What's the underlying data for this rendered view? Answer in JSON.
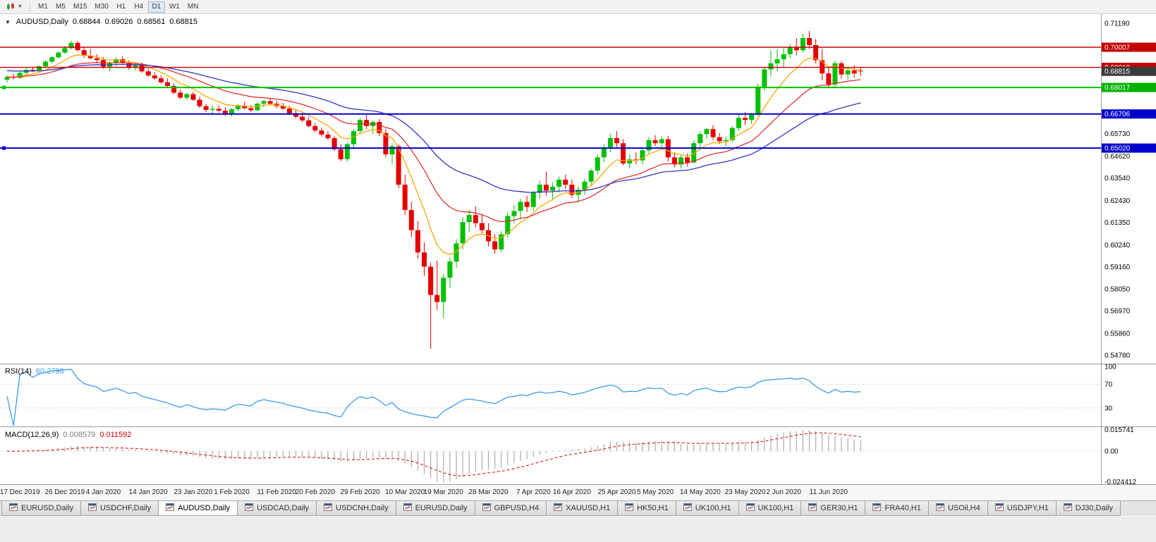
{
  "toolbar": {
    "timeframes": [
      "M1",
      "M5",
      "M15",
      "M30",
      "H1",
      "H4",
      "D1",
      "W1",
      "MN"
    ],
    "active_timeframe": "D1"
  },
  "chart": {
    "title": {
      "symbol": "AUDUSD,Daily",
      "open": "0.68844",
      "high": "0.69026",
      "low": "0.68561",
      "close": "0.68815"
    }
  },
  "rsi_panel": {
    "label": "RSI(14)",
    "value": "60.2798",
    "line_color": "#3d9be9",
    "axis_labels": [
      "100",
      "70",
      "30"
    ],
    "levels": [
      70,
      30
    ]
  },
  "macd_panel": {
    "label": "MACD(12,26,9)",
    "main_value": "0.008579",
    "signal_value": "0.011592",
    "histogram_color": "#ababab",
    "signal_color": "#d40000",
    "axis_max_label": "0.015741",
    "axis_zero_label": "0.00",
    "axis_min_label": "-0.024412"
  },
  "price_axis": {
    "ticks": [
      "0.71190",
      "0.65730",
      "0.64620",
      "0.63540",
      "0.62430",
      "0.61350",
      "0.60240",
      "0.59160",
      "0.58050",
      "0.56970",
      "0.55860",
      "0.54780"
    ],
    "badges": [
      {
        "text": "0.70007",
        "price": 0.70007,
        "color": "#c40000"
      },
      {
        "text": "0.69010",
        "price": 0.6901,
        "color": "#c40000"
      },
      {
        "text": "0.68815",
        "price": 0.68815,
        "color": "#3a3a3a"
      },
      {
        "text": "0.68017",
        "price": 0.68017,
        "color": "#00b300"
      },
      {
        "text": "0.66706",
        "price": 0.66706,
        "color": "#0000cc"
      },
      {
        "text": "0.65020",
        "price": 0.6502,
        "color": "#0000cc"
      }
    ]
  },
  "chart_data": {
    "type": "candlestick",
    "symbol": "AUDUSD",
    "period": "Daily",
    "ohlc_current": {
      "open": 0.68844,
      "high": 0.69026,
      "low": 0.68561,
      "close": 0.68815
    },
    "ylim": [
      0.5478,
      0.7119
    ],
    "y_ticks": [
      0.7119,
      0.6573,
      0.6462,
      0.6354,
      0.6243,
      0.6135,
      0.6024,
      0.5916,
      0.5805,
      0.5697,
      0.5586,
      0.5478
    ],
    "x_labels": [
      "17 Dec 2019",
      "26 Dec 2019",
      "4 Jan 2020",
      "14 Jan 2020",
      "23 Jan 2020",
      "1 Feb 2020",
      "11 Feb 2020",
      "20 Feb 2020",
      "29 Feb 2020",
      "10 Mar 2020",
      "19 Mar 2020",
      "28 Mar 2020",
      "7 Apr 2020",
      "16 Apr 2020",
      "25 Apr 2020",
      "5 May 2020",
      "14 May 2020",
      "23 May 2020",
      "2 Jun 2020",
      "11 Jun 2020"
    ],
    "up_color": "#00c000",
    "down_color": "#e60000",
    "hlines": [
      {
        "price": 0.70007,
        "color": "#c40000",
        "width": 1.4,
        "handle": false
      },
      {
        "price": 0.6901,
        "color": "#c40000",
        "width": 1.4,
        "handle": false
      },
      {
        "price": 0.68017,
        "color": "#00c000",
        "width": 2,
        "handle": true
      },
      {
        "price": 0.66706,
        "color": "#0000cc",
        "width": 2,
        "handle": false
      },
      {
        "price": 0.6502,
        "color": "#0000cc",
        "width": 2,
        "handle": true
      }
    ],
    "moving_averages": [
      {
        "name": "ma-fast-orange",
        "color": "#f7a800",
        "period": 8
      },
      {
        "name": "ma-mid-red",
        "color": "#e03232",
        "period": 20
      },
      {
        "name": "ma-slow-blue",
        "color": "#3434c8",
        "period": 40
      }
    ],
    "rsi": {
      "period": 14,
      "current": 60.2798
    },
    "macd": {
      "fast": 12,
      "slow": 26,
      "signal": 9,
      "current_main": 0.008579,
      "current_signal": 0.011592
    },
    "candles": [
      [
        0.684,
        0.6861,
        0.6826,
        0.6853
      ],
      [
        0.6853,
        0.6869,
        0.6841,
        0.6849
      ],
      [
        0.6849,
        0.6881,
        0.6844,
        0.6874
      ],
      [
        0.6874,
        0.6896,
        0.6866,
        0.6889
      ],
      [
        0.6889,
        0.6904,
        0.6876,
        0.6884
      ],
      [
        0.6884,
        0.6911,
        0.6879,
        0.6906
      ],
      [
        0.6906,
        0.6936,
        0.6899,
        0.6929
      ],
      [
        0.6929,
        0.6956,
        0.6921,
        0.6951
      ],
      [
        0.6951,
        0.6979,
        0.6944,
        0.6974
      ],
      [
        0.6974,
        0.7006,
        0.6968,
        0.6996
      ],
      [
        0.6996,
        0.7033,
        0.6989,
        0.7022
      ],
      [
        0.7022,
        0.7031,
        0.6979,
        0.6986
      ],
      [
        0.6986,
        0.7001,
        0.6949,
        0.6959
      ],
      [
        0.6959,
        0.6991,
        0.6941,
        0.6946
      ],
      [
        0.6946,
        0.6966,
        0.6924,
        0.6937
      ],
      [
        0.6937,
        0.6951,
        0.6894,
        0.6904
      ],
      [
        0.6904,
        0.6931,
        0.6881,
        0.6921
      ],
      [
        0.6921,
        0.6951,
        0.6906,
        0.6941
      ],
      [
        0.6941,
        0.6956,
        0.6914,
        0.6924
      ],
      [
        0.6924,
        0.6936,
        0.6889,
        0.6899
      ],
      [
        0.6899,
        0.6921,
        0.6884,
        0.6911
      ],
      [
        0.6911,
        0.6926,
        0.6874,
        0.6881
      ],
      [
        0.6881,
        0.6896,
        0.6854,
        0.6861
      ],
      [
        0.6861,
        0.6876,
        0.6839,
        0.6847
      ],
      [
        0.6847,
        0.6861,
        0.6819,
        0.6827
      ],
      [
        0.6827,
        0.6846,
        0.6799,
        0.6809
      ],
      [
        0.6809,
        0.6821,
        0.6769,
        0.6776
      ],
      [
        0.6776,
        0.6791,
        0.6744,
        0.6751
      ],
      [
        0.6751,
        0.6776,
        0.6739,
        0.6769
      ],
      [
        0.6769,
        0.6781,
        0.6734,
        0.6741
      ],
      [
        0.6741,
        0.6756,
        0.6699,
        0.6709
      ],
      [
        0.6709,
        0.6721,
        0.6679,
        0.6691
      ],
      [
        0.6691,
        0.6713,
        0.6669,
        0.6696
      ],
      [
        0.6696,
        0.6711,
        0.6677,
        0.6687
      ],
      [
        0.6687,
        0.6704,
        0.6661,
        0.6671
      ],
      [
        0.6671,
        0.6701,
        0.6659,
        0.6694
      ],
      [
        0.6694,
        0.6721,
        0.6684,
        0.6711
      ],
      [
        0.6711,
        0.6731,
        0.6694,
        0.6699
      ],
      [
        0.6699,
        0.6716,
        0.6679,
        0.6689
      ],
      [
        0.6689,
        0.6729,
        0.6684,
        0.6721
      ],
      [
        0.6721,
        0.6741,
        0.6704,
        0.6734
      ],
      [
        0.6734,
        0.6751,
        0.6714,
        0.6721
      ],
      [
        0.6721,
        0.6736,
        0.6699,
        0.6709
      ],
      [
        0.6709,
        0.6726,
        0.6689,
        0.6697
      ],
      [
        0.6697,
        0.6711,
        0.6666,
        0.6674
      ],
      [
        0.6674,
        0.6691,
        0.6649,
        0.6657
      ],
      [
        0.6657,
        0.6676,
        0.6629,
        0.6639
      ],
      [
        0.6639,
        0.6656,
        0.6604,
        0.6611
      ],
      [
        0.6611,
        0.6626,
        0.6579,
        0.6589
      ],
      [
        0.6589,
        0.6604,
        0.6559,
        0.6569
      ],
      [
        0.6569,
        0.6586,
        0.6541,
        0.6551
      ],
      [
        0.6551,
        0.6561,
        0.6486,
        0.6496
      ],
      [
        0.6496,
        0.6521,
        0.6437,
        0.6447
      ],
      [
        0.6447,
        0.6531,
        0.6434,
        0.6521
      ],
      [
        0.6521,
        0.6596,
        0.6501,
        0.6586
      ],
      [
        0.6586,
        0.6651,
        0.6571,
        0.6641
      ],
      [
        0.6641,
        0.6666,
        0.6596,
        0.6611
      ],
      [
        0.6611,
        0.6641,
        0.6571,
        0.6631
      ],
      [
        0.6631,
        0.6646,
        0.6561,
        0.6576
      ],
      [
        0.6576,
        0.6596,
        0.6456,
        0.6471
      ],
      [
        0.6471,
        0.6526,
        0.6421,
        0.6511
      ],
      [
        0.6511,
        0.6521,
        0.6304,
        0.6321
      ],
      [
        0.6321,
        0.6371,
        0.6171,
        0.6196
      ],
      [
        0.6196,
        0.6236,
        0.6061,
        0.6096
      ],
      [
        0.6096,
        0.6141,
        0.5956,
        0.5986
      ],
      [
        0.5986,
        0.6036,
        0.5871,
        0.5916
      ],
      [
        0.5916,
        0.5936,
        0.551,
        0.5776
      ],
      [
        0.5776,
        0.5946,
        0.5702,
        0.5741
      ],
      [
        0.5741,
        0.5881,
        0.5661,
        0.5861
      ],
      [
        0.5861,
        0.5961,
        0.5811,
        0.5941
      ],
      [
        0.5941,
        0.6051,
        0.5911,
        0.6031
      ],
      [
        0.6031,
        0.6161,
        0.6001,
        0.6136
      ],
      [
        0.6136,
        0.6196,
        0.6086,
        0.6171
      ],
      [
        0.6171,
        0.6216,
        0.6111,
        0.6131
      ],
      [
        0.6131,
        0.6176,
        0.6081,
        0.6096
      ],
      [
        0.6096,
        0.6131,
        0.6016,
        0.6041
      ],
      [
        0.6041,
        0.6076,
        0.5981,
        0.6001
      ],
      [
        0.6001,
        0.6091,
        0.5986,
        0.6076
      ],
      [
        0.6076,
        0.6186,
        0.6061,
        0.6166
      ],
      [
        0.6166,
        0.6221,
        0.6131,
        0.6191
      ],
      [
        0.6191,
        0.6251,
        0.6151,
        0.6236
      ],
      [
        0.6236,
        0.6266,
        0.6186,
        0.6211
      ],
      [
        0.6211,
        0.6291,
        0.6191,
        0.6281
      ],
      [
        0.6281,
        0.6341,
        0.6251,
        0.6321
      ],
      [
        0.6321,
        0.6386,
        0.6266,
        0.6291
      ],
      [
        0.6291,
        0.6331,
        0.6251,
        0.6311
      ],
      [
        0.6311,
        0.6361,
        0.6281,
        0.6346
      ],
      [
        0.6346,
        0.6371,
        0.6301,
        0.6321
      ],
      [
        0.6321,
        0.6346,
        0.6256,
        0.6271
      ],
      [
        0.6271,
        0.6311,
        0.6231,
        0.6296
      ],
      [
        0.6296,
        0.6351,
        0.6271,
        0.6336
      ],
      [
        0.6336,
        0.6401,
        0.6316,
        0.6391
      ],
      [
        0.6391,
        0.6471,
        0.6371,
        0.6456
      ],
      [
        0.6456,
        0.6521,
        0.6431,
        0.6506
      ],
      [
        0.6506,
        0.6571,
        0.6481,
        0.6551
      ],
      [
        0.6551,
        0.6586,
        0.6506,
        0.6526
      ],
      [
        0.6526,
        0.6546,
        0.6416,
        0.6426
      ],
      [
        0.6426,
        0.6471,
        0.6401,
        0.6446
      ],
      [
        0.6446,
        0.6481,
        0.6421,
        0.6441
      ],
      [
        0.6441,
        0.6506,
        0.6421,
        0.6491
      ],
      [
        0.6491,
        0.6556,
        0.6476,
        0.6541
      ],
      [
        0.6541,
        0.6566,
        0.6511,
        0.6526
      ],
      [
        0.6526,
        0.6561,
        0.6496,
        0.6546
      ],
      [
        0.6546,
        0.6561,
        0.6436,
        0.6456
      ],
      [
        0.6456,
        0.6481,
        0.6406,
        0.6421
      ],
      [
        0.6421,
        0.6466,
        0.6401,
        0.6456
      ],
      [
        0.6456,
        0.6476,
        0.6411,
        0.6431
      ],
      [
        0.6431,
        0.6541,
        0.6426,
        0.6526
      ],
      [
        0.6526,
        0.6586,
        0.6506,
        0.6571
      ],
      [
        0.6571,
        0.6601,
        0.6546,
        0.6596
      ],
      [
        0.6596,
        0.6616,
        0.6541,
        0.6556
      ],
      [
        0.6556,
        0.6576,
        0.6521,
        0.6536
      ],
      [
        0.6536,
        0.6561,
        0.6511,
        0.6541
      ],
      [
        0.6541,
        0.6611,
        0.6531,
        0.6601
      ],
      [
        0.6601,
        0.6666,
        0.6586,
        0.6651
      ],
      [
        0.6651,
        0.6681,
        0.6616,
        0.6641
      ],
      [
        0.6641,
        0.6676,
        0.6621,
        0.6666
      ],
      [
        0.6666,
        0.6821,
        0.6661,
        0.6806
      ],
      [
        0.6806,
        0.6901,
        0.6786,
        0.6891
      ],
      [
        0.6891,
        0.6986,
        0.6856,
        0.6921
      ],
      [
        0.6921,
        0.6991,
        0.6881,
        0.6941
      ],
      [
        0.6941,
        0.7001,
        0.6901,
        0.6966
      ],
      [
        0.6966,
        0.7016,
        0.6946,
        0.7001
      ],
      [
        0.7001,
        0.7046,
        0.6961,
        0.6986
      ],
      [
        0.6986,
        0.7066,
        0.6976,
        0.7046
      ],
      [
        0.7046,
        0.7081,
        0.6991,
        0.7011
      ],
      [
        0.7011,
        0.7041,
        0.6921,
        0.6936
      ],
      [
        0.6936,
        0.6991,
        0.6836,
        0.6871
      ],
      [
        0.6871,
        0.6906,
        0.6801,
        0.6816
      ],
      [
        0.6816,
        0.6936,
        0.6806,
        0.6921
      ],
      [
        0.6921,
        0.6931,
        0.6846,
        0.6866
      ],
      [
        0.6866,
        0.6901,
        0.6841,
        0.6886
      ],
      [
        0.6886,
        0.6911,
        0.6851,
        0.6871
      ],
      [
        0.68844,
        0.69026,
        0.68561,
        0.68815
      ]
    ]
  },
  "tabs": {
    "active_index": 2,
    "items": [
      {
        "label": "EURUSD,Daily"
      },
      {
        "label": "USDCHF,Daily"
      },
      {
        "label": "AUDUSD,Daily"
      },
      {
        "label": "USDCAD,Daily"
      },
      {
        "label": "USDCNH,Daily"
      },
      {
        "label": "EURUSD,Daily"
      },
      {
        "label": "GBPUSD,H4"
      },
      {
        "label": "XAUUSD,H1"
      },
      {
        "label": "HK50,H1"
      },
      {
        "label": "UK100,H1"
      },
      {
        "label": "UK100,H1"
      },
      {
        "label": "GER30,H1"
      },
      {
        "label": "FRA40,H1"
      },
      {
        "label": "USOil,H4"
      },
      {
        "label": "USDJPY,H1"
      },
      {
        "label": "DJ30,Daily"
      }
    ]
  }
}
